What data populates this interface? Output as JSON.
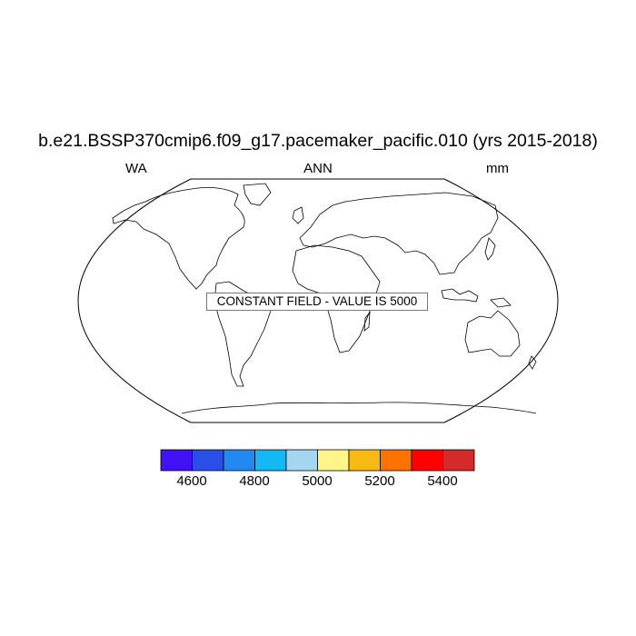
{
  "title": "b.e21.BSSP370cmip6.f09_g17.pacemaker_pacific.010 (yrs 2015-2018)",
  "subtitle_left": "WA",
  "subtitle_center": "ANN",
  "subtitle_right": "mm",
  "annotation": "CONSTANT FIELD - VALUE IS 5000",
  "colorbar": {
    "colors": [
      "#4012f5",
      "#2b4ee6",
      "#2288f2",
      "#14b8f5",
      "#a4d6ef",
      "#fff58a",
      "#f8b915",
      "#ff7200",
      "#ff0000",
      "#d42a2a"
    ],
    "tick_labels": [
      "4600",
      "4800",
      "5000",
      "5200",
      "5400"
    ]
  }
}
